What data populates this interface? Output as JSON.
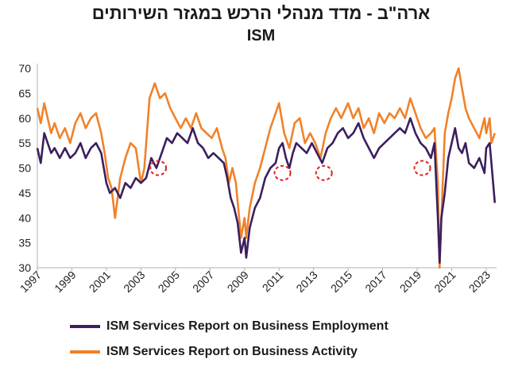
{
  "chart_data": {
    "type": "line",
    "title": "ארה\"ב - מדד מנהלי הרכש במגזר השירותים",
    "subtitle": "ISM",
    "xlabel": "",
    "ylabel": "",
    "ylim": [
      30,
      70
    ],
    "yticks": [
      30,
      35,
      40,
      45,
      50,
      55,
      60,
      65,
      70
    ],
    "xlim": [
      1997.0,
      2023.6
    ],
    "xticks": [
      "1997",
      "1999",
      "2001",
      "2003",
      "2005",
      "2007",
      "2009",
      "2011",
      "2013",
      "2015",
      "2017",
      "2019",
      "2021",
      "2023"
    ],
    "grid": false,
    "legend_position": "bottom",
    "series": [
      {
        "name": "ISM Services Report on Business Employment",
        "color": "#3b1f5e",
        "points": [
          [
            1997.0,
            54
          ],
          [
            1997.2,
            51
          ],
          [
            1997.4,
            57
          ],
          [
            1997.6,
            55
          ],
          [
            1997.8,
            53
          ],
          [
            1998.0,
            54
          ],
          [
            1998.3,
            52
          ],
          [
            1998.6,
            54
          ],
          [
            1998.9,
            52
          ],
          [
            1999.2,
            53
          ],
          [
            1999.5,
            55
          ],
          [
            1999.8,
            52
          ],
          [
            2000.1,
            54
          ],
          [
            2000.4,
            55
          ],
          [
            2000.7,
            53
          ],
          [
            2001.0,
            47
          ],
          [
            2001.2,
            45
          ],
          [
            2001.5,
            46
          ],
          [
            2001.8,
            44
          ],
          [
            2002.1,
            47
          ],
          [
            2002.4,
            46
          ],
          [
            2002.7,
            48
          ],
          [
            2003.0,
            47
          ],
          [
            2003.3,
            48
          ],
          [
            2003.6,
            52
          ],
          [
            2003.9,
            50
          ],
          [
            2004.2,
            53
          ],
          [
            2004.5,
            56
          ],
          [
            2004.8,
            55
          ],
          [
            2005.1,
            57
          ],
          [
            2005.4,
            56
          ],
          [
            2005.7,
            55
          ],
          [
            2006.0,
            58
          ],
          [
            2006.3,
            55
          ],
          [
            2006.6,
            54
          ],
          [
            2006.9,
            52
          ],
          [
            2007.2,
            53
          ],
          [
            2007.5,
            52
          ],
          [
            2007.8,
            51
          ],
          [
            2008.0,
            48
          ],
          [
            2008.2,
            44
          ],
          [
            2008.4,
            42
          ],
          [
            2008.6,
            39
          ],
          [
            2008.8,
            33
          ],
          [
            2009.0,
            36
          ],
          [
            2009.1,
            32
          ],
          [
            2009.3,
            38
          ],
          [
            2009.6,
            42
          ],
          [
            2009.9,
            44
          ],
          [
            2010.2,
            48
          ],
          [
            2010.5,
            50
          ],
          [
            2010.8,
            51
          ],
          [
            2011.0,
            54
          ],
          [
            2011.2,
            55
          ],
          [
            2011.4,
            52
          ],
          [
            2011.6,
            50
          ],
          [
            2011.8,
            53
          ],
          [
            2012.0,
            55
          ],
          [
            2012.3,
            54
          ],
          [
            2012.6,
            53
          ],
          [
            2012.9,
            55
          ],
          [
            2013.2,
            53
          ],
          [
            2013.5,
            51
          ],
          [
            2013.8,
            54
          ],
          [
            2014.1,
            55
          ],
          [
            2014.4,
            57
          ],
          [
            2014.7,
            58
          ],
          [
            2015.0,
            56
          ],
          [
            2015.3,
            57
          ],
          [
            2015.6,
            59
          ],
          [
            2015.9,
            56
          ],
          [
            2016.2,
            54
          ],
          [
            2016.5,
            52
          ],
          [
            2016.8,
            54
          ],
          [
            2017.1,
            55
          ],
          [
            2017.4,
            56
          ],
          [
            2017.7,
            57
          ],
          [
            2018.0,
            58
          ],
          [
            2018.3,
            57
          ],
          [
            2018.6,
            60
          ],
          [
            2018.9,
            57
          ],
          [
            2019.2,
            55
          ],
          [
            2019.5,
            54
          ],
          [
            2019.8,
            52
          ],
          [
            2020.0,
            55
          ],
          [
            2020.2,
            40
          ],
          [
            2020.3,
            31
          ],
          [
            2020.4,
            40
          ],
          [
            2020.6,
            45
          ],
          [
            2020.8,
            52
          ],
          [
            2021.0,
            55
          ],
          [
            2021.2,
            58
          ],
          [
            2021.4,
            54
          ],
          [
            2021.6,
            53
          ],
          [
            2021.8,
            55
          ],
          [
            2022.0,
            51
          ],
          [
            2022.3,
            50
          ],
          [
            2022.6,
            52
          ],
          [
            2022.9,
            49
          ],
          [
            2023.0,
            54
          ],
          [
            2023.2,
            55
          ],
          [
            2023.3,
            51
          ],
          [
            2023.5,
            43
          ]
        ]
      },
      {
        "name": "ISM Services Report on Business  Activity",
        "color": "#f0822a",
        "points": [
          [
            1997.0,
            62
          ],
          [
            1997.2,
            59
          ],
          [
            1997.4,
            63
          ],
          [
            1997.6,
            60
          ],
          [
            1997.8,
            57
          ],
          [
            1998.0,
            59
          ],
          [
            1998.3,
            56
          ],
          [
            1998.6,
            58
          ],
          [
            1998.9,
            55
          ],
          [
            1999.2,
            59
          ],
          [
            1999.5,
            61
          ],
          [
            1999.8,
            58
          ],
          [
            2000.1,
            60
          ],
          [
            2000.4,
            61
          ],
          [
            2000.7,
            57
          ],
          [
            2000.9,
            53
          ],
          [
            2001.1,
            48
          ],
          [
            2001.3,
            46
          ],
          [
            2001.5,
            40
          ],
          [
            2001.8,
            48
          ],
          [
            2002.1,
            52
          ],
          [
            2002.4,
            55
          ],
          [
            2002.7,
            54
          ],
          [
            2003.0,
            47
          ],
          [
            2003.2,
            50
          ],
          [
            2003.5,
            64
          ],
          [
            2003.8,
            67
          ],
          [
            2004.1,
            64
          ],
          [
            2004.4,
            65
          ],
          [
            2004.7,
            62
          ],
          [
            2005.0,
            60
          ],
          [
            2005.3,
            58
          ],
          [
            2005.6,
            60
          ],
          [
            2005.9,
            58
          ],
          [
            2006.2,
            61
          ],
          [
            2006.5,
            58
          ],
          [
            2006.8,
            57
          ],
          [
            2007.1,
            56
          ],
          [
            2007.4,
            58
          ],
          [
            2007.7,
            54
          ],
          [
            2007.9,
            52
          ],
          [
            2008.1,
            47
          ],
          [
            2008.3,
            50
          ],
          [
            2008.5,
            47
          ],
          [
            2008.8,
            36
          ],
          [
            2009.0,
            40
          ],
          [
            2009.1,
            36
          ],
          [
            2009.3,
            42
          ],
          [
            2009.6,
            47
          ],
          [
            2009.9,
            50
          ],
          [
            2010.2,
            54
          ],
          [
            2010.5,
            58
          ],
          [
            2010.8,
            61
          ],
          [
            2011.0,
            63
          ],
          [
            2011.3,
            57
          ],
          [
            2011.6,
            54
          ],
          [
            2011.9,
            59
          ],
          [
            2012.2,
            60
          ],
          [
            2012.5,
            55
          ],
          [
            2012.8,
            57
          ],
          [
            2013.1,
            55
          ],
          [
            2013.4,
            52
          ],
          [
            2013.7,
            57
          ],
          [
            2014.0,
            60
          ],
          [
            2014.3,
            62
          ],
          [
            2014.6,
            60
          ],
          [
            2015.0,
            63
          ],
          [
            2015.3,
            60
          ],
          [
            2015.6,
            62
          ],
          [
            2015.9,
            58
          ],
          [
            2016.2,
            60
          ],
          [
            2016.5,
            57
          ],
          [
            2016.8,
            61
          ],
          [
            2017.1,
            59
          ],
          [
            2017.4,
            61
          ],
          [
            2017.7,
            60
          ],
          [
            2018.0,
            62
          ],
          [
            2018.3,
            60
          ],
          [
            2018.6,
            64
          ],
          [
            2018.9,
            61
          ],
          [
            2019.2,
            58
          ],
          [
            2019.5,
            56
          ],
          [
            2019.8,
            57
          ],
          [
            2020.0,
            58
          ],
          [
            2020.2,
            47
          ],
          [
            2020.3,
            30
          ],
          [
            2020.4,
            40
          ],
          [
            2020.6,
            57
          ],
          [
            2020.8,
            61
          ],
          [
            2021.0,
            64
          ],
          [
            2021.2,
            68
          ],
          [
            2021.4,
            70
          ],
          [
            2021.6,
            66
          ],
          [
            2021.8,
            62
          ],
          [
            2022.0,
            60
          ],
          [
            2022.3,
            58
          ],
          [
            2022.6,
            56
          ],
          [
            2022.9,
            60
          ],
          [
            2023.0,
            57
          ],
          [
            2023.2,
            60
          ],
          [
            2023.3,
            55
          ],
          [
            2023.5,
            57
          ]
        ]
      }
    ],
    "annotations": [
      {
        "type": "dashed-circle",
        "x": 2004.0,
        "y": 50,
        "color": "#e02020"
      },
      {
        "type": "dashed-circle",
        "x": 2011.2,
        "y": 49,
        "color": "#e02020"
      },
      {
        "type": "dashed-circle",
        "x": 2013.6,
        "y": 49,
        "color": "#e02020"
      },
      {
        "type": "dashed-circle",
        "x": 2019.3,
        "y": 50,
        "color": "#e02020"
      }
    ]
  }
}
